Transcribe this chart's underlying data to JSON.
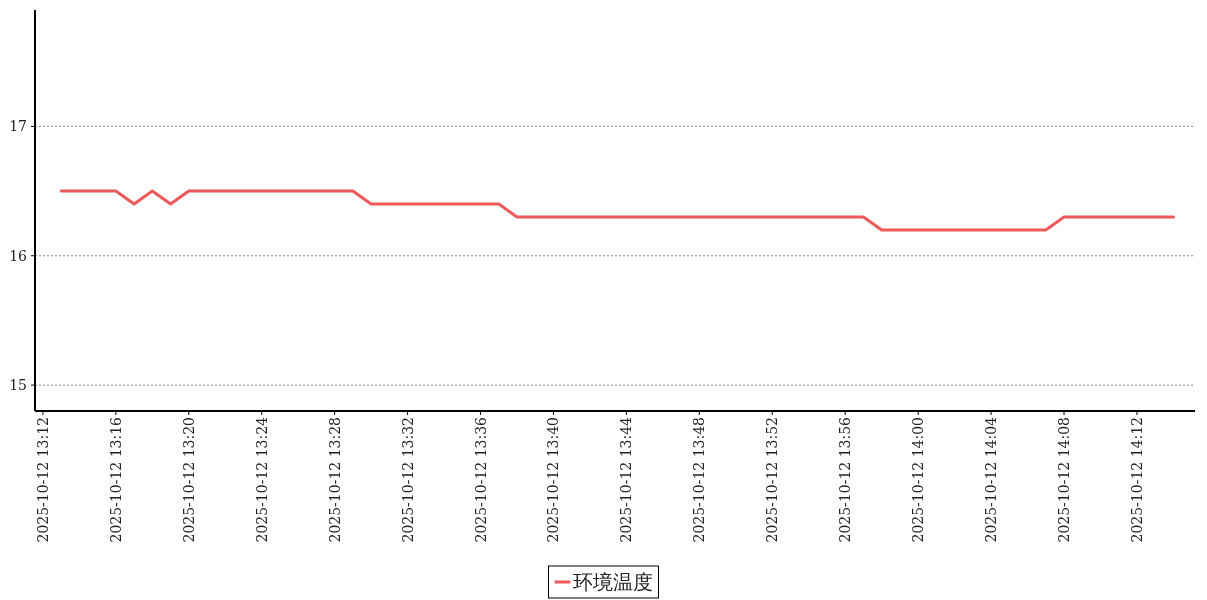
{
  "chart_data": {
    "type": "line",
    "x": [
      "2025-10-12T13:13",
      "2025-10-12T13:14",
      "2025-10-12T13:15",
      "2025-10-12T13:16",
      "2025-10-12T13:17",
      "2025-10-12T13:18",
      "2025-10-12T13:19",
      "2025-10-12T13:20",
      "2025-10-12T13:21",
      "2025-10-12T13:22",
      "2025-10-12T13:23",
      "2025-10-12T13:24",
      "2025-10-12T13:25",
      "2025-10-12T13:26",
      "2025-10-12T13:27",
      "2025-10-12T13:28",
      "2025-10-12T13:29",
      "2025-10-12T13:30",
      "2025-10-12T13:31",
      "2025-10-12T13:32",
      "2025-10-12T13:33",
      "2025-10-12T13:34",
      "2025-10-12T13:35",
      "2025-10-12T13:36",
      "2025-10-12T13:37",
      "2025-10-12T13:38",
      "2025-10-12T13:39",
      "2025-10-12T13:40",
      "2025-10-12T13:41",
      "2025-10-12T13:42",
      "2025-10-12T13:43",
      "2025-10-12T13:44",
      "2025-10-12T13:45",
      "2025-10-12T13:46",
      "2025-10-12T13:47",
      "2025-10-12T13:48",
      "2025-10-12T13:49",
      "2025-10-12T13:50",
      "2025-10-12T13:51",
      "2025-10-12T13:52",
      "2025-10-12T13:53",
      "2025-10-12T13:54",
      "2025-10-12T13:55",
      "2025-10-12T13:56",
      "2025-10-12T13:57",
      "2025-10-12T13:58",
      "2025-10-12T13:59",
      "2025-10-12T14:00",
      "2025-10-12T14:01",
      "2025-10-12T14:02",
      "2025-10-12T14:03",
      "2025-10-12T14:04",
      "2025-10-12T14:05",
      "2025-10-12T14:06",
      "2025-10-12T14:07",
      "2025-10-12T14:08",
      "2025-10-12T14:09",
      "2025-10-12T14:10",
      "2025-10-12T14:11",
      "2025-10-12T14:12",
      "2025-10-12T14:13",
      "2025-10-12T14:14"
    ],
    "series": [
      {
        "name": "环境温度",
        "color": "#ee5a5a",
        "values": [
          16.5,
          16.5,
          16.5,
          16.5,
          16.4,
          16.5,
          16.4,
          16.5,
          16.5,
          16.5,
          16.5,
          16.5,
          16.5,
          16.5,
          16.5,
          16.5,
          16.5,
          16.4,
          16.4,
          16.4,
          16.4,
          16.4,
          16.4,
          16.4,
          16.4,
          16.3,
          16.3,
          16.3,
          16.3,
          16.3,
          16.3,
          16.3,
          16.3,
          16.3,
          16.3,
          16.3,
          16.3,
          16.3,
          16.3,
          16.3,
          16.3,
          16.3,
          16.3,
          16.3,
          16.3,
          16.2,
          16.2,
          16.2,
          16.2,
          16.2,
          16.2,
          16.2,
          16.2,
          16.2,
          16.2,
          16.3,
          16.3,
          16.3,
          16.3,
          16.3,
          16.3,
          16.3
        ]
      }
    ],
    "xlim": [
      "2025-10-12T13:11:34",
      "2025-10-12T14:15:11"
    ],
    "xticks": [
      {
        "value": "2025-10-12T13:12",
        "label": "2025-10-12 13:12"
      },
      {
        "value": "2025-10-12T13:16",
        "label": "2025-10-12 13:16"
      },
      {
        "value": "2025-10-12T13:20",
        "label": "2025-10-12 13:20"
      },
      {
        "value": "2025-10-12T13:24",
        "label": "2025-10-12 13:24"
      },
      {
        "value": "2025-10-12T13:28",
        "label": "2025-10-12 13:28"
      },
      {
        "value": "2025-10-12T13:32",
        "label": "2025-10-12 13:32"
      },
      {
        "value": "2025-10-12T13:36",
        "label": "2025-10-12 13:36"
      },
      {
        "value": "2025-10-12T13:40",
        "label": "2025-10-12 13:40"
      },
      {
        "value": "2025-10-12T13:44",
        "label": "2025-10-12 13:44"
      },
      {
        "value": "2025-10-12T13:48",
        "label": "2025-10-12 13:48"
      },
      {
        "value": "2025-10-12T13:52",
        "label": "2025-10-12 13:52"
      },
      {
        "value": "2025-10-12T13:56",
        "label": "2025-10-12 13:56"
      },
      {
        "value": "2025-10-12T14:00",
        "label": "2025-10-12 14:00"
      },
      {
        "value": "2025-10-12T14:04",
        "label": "2025-10-12 14:04"
      },
      {
        "value": "2025-10-12T14:08",
        "label": "2025-10-12 14:08"
      },
      {
        "value": "2025-10-12T14:12",
        "label": "2025-10-12 14:12"
      }
    ],
    "ylim": [
      14.8,
      17.9
    ],
    "yticks": [
      15,
      16,
      17
    ],
    "grid": "y",
    "legend": "bottom"
  }
}
